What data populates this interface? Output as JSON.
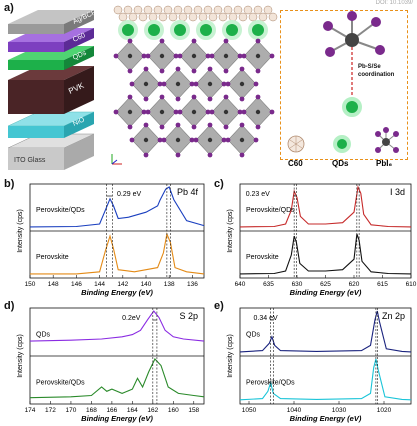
{
  "doi": "DOI: 10.1039/",
  "panel_a": {
    "label": "a)",
    "stack_layers": [
      {
        "name": "Ag/BCP",
        "color": "#9a9a9a"
      },
      {
        "name": "C60",
        "color": "#7d3fc0"
      },
      {
        "name": "QDs",
        "color": "#1db04a"
      },
      {
        "name": "PVK",
        "color": "#4a2426"
      },
      {
        "name": "NiO",
        "color": "#44c6d2"
      },
      {
        "name": "ITO Glass",
        "color": "#c9c9c9"
      }
    ],
    "callout": "Pb-S/Se coordination",
    "legend": [
      "C60",
      "QDs",
      "PbI₆"
    ]
  },
  "panels": {
    "b": {
      "label": "b)",
      "element": "Pb 4f",
      "annotation": "0.29 eV",
      "top": "Perovskite/QDs",
      "bottom": "Perovskite"
    },
    "c": {
      "label": "c)",
      "element": "I 3d",
      "annotation": "0.23 eV",
      "top": "Perovskite/QDs",
      "bottom": "Perovskite"
    },
    "d": {
      "label": "d)",
      "element": "S 2p",
      "annotation": "0.2eV",
      "top": "QDs",
      "bottom": "Perovskite/QDs"
    },
    "e": {
      "label": "e)",
      "element": "Zn 2p",
      "annotation": "0.34 eV",
      "top": "QDs",
      "bottom": "Perovskite/QDs"
    }
  },
  "axis_common": {
    "xlabel": "Binding Energy (eV)",
    "ylabel": "Intensity (cps)"
  },
  "chart_data": [
    {
      "type": "line",
      "title": "Pb 4f",
      "xlabel": "Binding Energy (eV)",
      "ylabel": "Intensity (cps)",
      "xlim": [
        150,
        135
      ],
      "xticks": [
        150,
        148,
        146,
        144,
        142,
        140,
        138,
        136
      ],
      "series": [
        {
          "name": "Perovskite/QDs",
          "color": "#1a3fbf",
          "x": [
            150,
            146,
            144,
            143.5,
            143.1,
            142.8,
            142.4,
            141.5,
            140,
            139,
            138.8,
            138.3,
            138.0,
            137.6,
            136.5,
            135
          ],
          "y": [
            0.05,
            0.06,
            0.12,
            0.45,
            0.72,
            0.55,
            0.25,
            0.28,
            0.4,
            0.55,
            0.68,
            0.95,
            1.0,
            0.7,
            0.2,
            0.08
          ]
        },
        {
          "name": "Perovskite",
          "color": "#e38a16",
          "x": [
            150,
            146,
            144,
            143.5,
            143.1,
            142.8,
            142.4,
            141,
            139,
            138.5,
            138.2,
            137.9,
            137.5,
            136.5,
            135
          ],
          "y": [
            0.05,
            0.05,
            0.1,
            0.6,
            0.95,
            0.65,
            0.15,
            0.1,
            0.2,
            0.55,
            1.0,
            0.8,
            0.2,
            0.1,
            0.05
          ]
        }
      ]
    },
    {
      "type": "line",
      "title": "I 3d",
      "xlabel": "Binding Energy (eV)",
      "ylabel": "Intensity (cps)",
      "xlim": [
        640,
        610
      ],
      "xticks": [
        640,
        635,
        630,
        625,
        620,
        615,
        610
      ],
      "series": [
        {
          "name": "Perovskite/QDs",
          "color": "#c62a2a",
          "x": [
            640,
            634,
            632,
            631,
            630.5,
            630,
            629.4,
            628,
            625,
            622,
            620,
            619.3,
            618.8,
            618.3,
            617,
            614,
            610
          ],
          "y": [
            0.05,
            0.06,
            0.12,
            0.45,
            0.9,
            0.75,
            0.3,
            0.12,
            0.12,
            0.15,
            0.4,
            1.0,
            0.85,
            0.35,
            0.1,
            0.06,
            0.05
          ]
        },
        {
          "name": "Perovskite",
          "color": "#111111",
          "x": [
            640,
            634,
            632,
            631,
            630.5,
            630.1,
            629.5,
            628,
            625,
            622,
            620,
            619.5,
            619.1,
            618.6,
            617,
            614,
            610
          ],
          "y": [
            0.05,
            0.06,
            0.12,
            0.5,
            0.95,
            0.8,
            0.3,
            0.12,
            0.12,
            0.15,
            0.4,
            1.0,
            0.85,
            0.35,
            0.1,
            0.06,
            0.05
          ]
        }
      ]
    },
    {
      "type": "line",
      "title": "S 2p",
      "xlabel": "Binding Energy (eV)",
      "ylabel": "Intensity (cps)",
      "xlim": [
        174,
        157
      ],
      "xticks": [
        174,
        172,
        170,
        168,
        166,
        164,
        162,
        160,
        158
      ],
      "series": [
        {
          "name": "QDs",
          "color": "#8a2be2",
          "x": [
            174,
            170,
            167,
            165,
            164,
            163.2,
            162.5,
            161.9,
            161.4,
            160.8,
            160,
            159,
            157
          ],
          "y": [
            0.3,
            0.32,
            0.35,
            0.4,
            0.45,
            0.55,
            0.8,
            1.0,
            0.85,
            0.55,
            0.4,
            0.35,
            0.3
          ]
        },
        {
          "name": "Perovskite/QDs",
          "color": "#2a8a2a",
          "x": [
            174,
            170,
            168,
            167,
            166.5,
            166,
            165,
            164,
            163.5,
            163,
            162.4,
            161.8,
            161.2,
            160.5,
            159.5,
            158,
            157
          ],
          "y": [
            0.1,
            0.12,
            0.15,
            0.35,
            0.25,
            0.3,
            0.2,
            0.3,
            0.55,
            0.35,
            0.7,
            1.0,
            0.85,
            0.35,
            0.2,
            0.15,
            0.12
          ]
        }
      ]
    },
    {
      "type": "line",
      "title": "Zn 2p",
      "xlabel": "Binding Energy (eV)",
      "ylabel": "Intensity (cps)",
      "xlim": [
        1052,
        1014
      ],
      "xticks": [
        1050,
        1040,
        1030,
        1020
      ],
      "series": [
        {
          "name": "QDs",
          "color": "#1a237e",
          "x": [
            1052,
            1047,
            1045.5,
            1044.9,
            1044.3,
            1043,
            1035,
            1025,
            1023,
            1022,
            1021.5,
            1021,
            1019.5,
            1016,
            1014
          ],
          "y": [
            0.05,
            0.08,
            0.25,
            0.4,
            0.2,
            0.08,
            0.06,
            0.08,
            0.2,
            0.8,
            1.0,
            0.75,
            0.12,
            0.06,
            0.05
          ]
        },
        {
          "name": "Perovskite/QDs",
          "color": "#19c4d8",
          "x": [
            1052,
            1047,
            1045.8,
            1045.2,
            1044.6,
            1043,
            1035,
            1025,
            1023,
            1022.3,
            1021.8,
            1021.3,
            1019.8,
            1016,
            1014
          ],
          "y": [
            0.05,
            0.08,
            0.25,
            0.45,
            0.2,
            0.08,
            0.06,
            0.08,
            0.2,
            0.8,
            1.0,
            0.75,
            0.12,
            0.06,
            0.05
          ]
        }
      ]
    }
  ]
}
